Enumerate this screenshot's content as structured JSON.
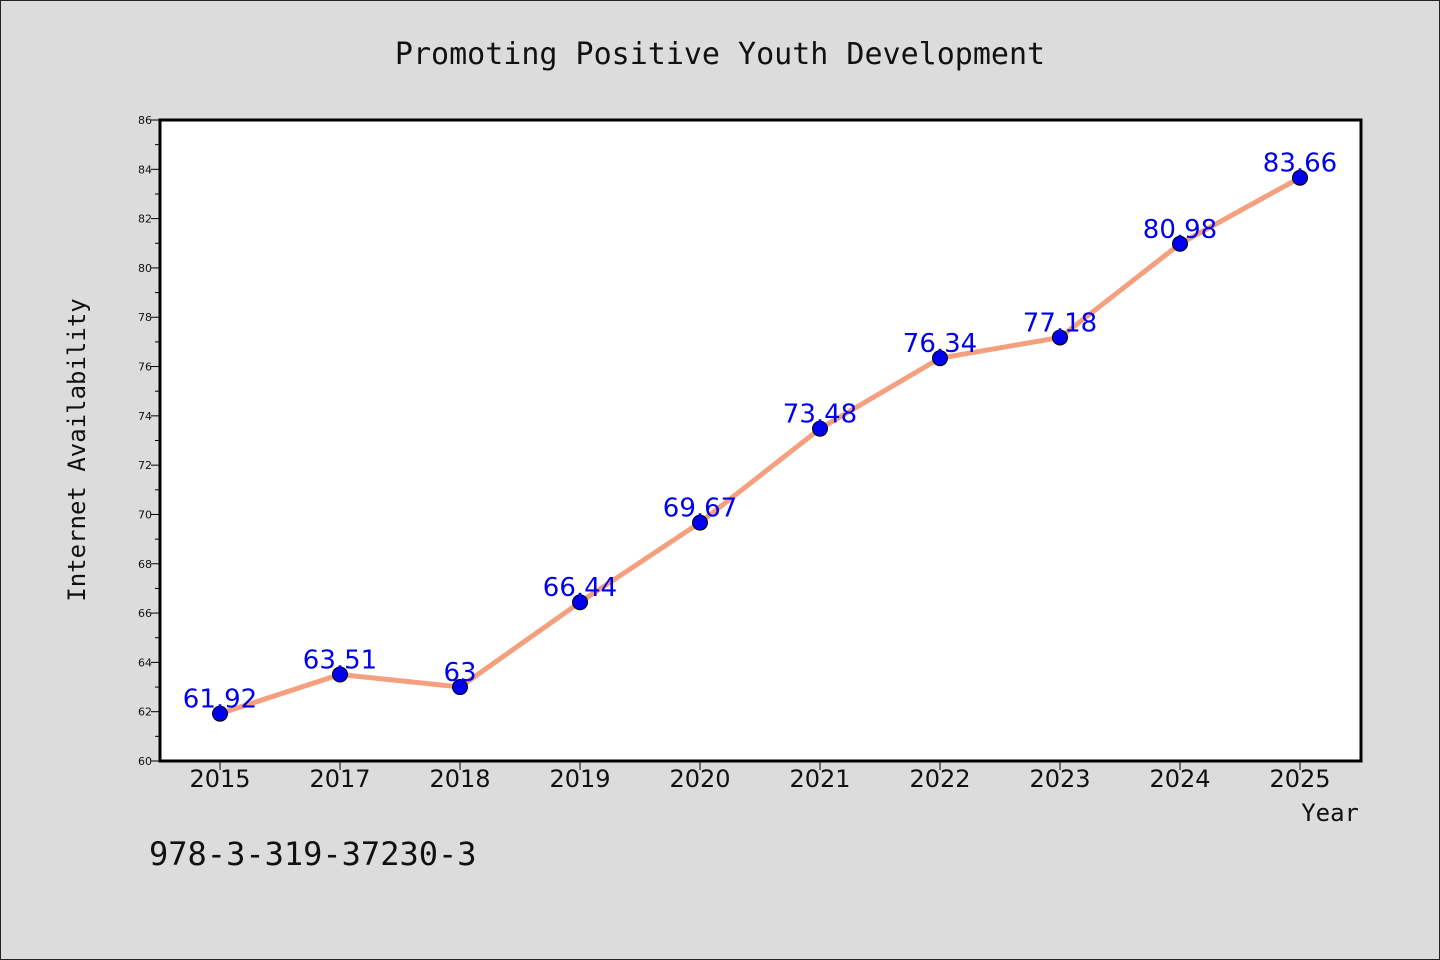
{
  "footer": {
    "isbn": "978-3-319-37230-3"
  },
  "chart_data": {
    "type": "line",
    "title": "Promoting Positive Youth Development",
    "xlabel": "Year",
    "ylabel": "Internet Availability",
    "categories": [
      "2015",
      "2017",
      "2018",
      "2019",
      "2020",
      "2021",
      "2022",
      "2023",
      "2024",
      "2025"
    ],
    "series": [
      {
        "values": [
          61.92,
          63.51,
          63,
          66.44,
          69.67,
          73.48,
          76.34,
          77.18,
          80.98,
          83.66
        ],
        "labels": [
          "61.92",
          "63.51",
          "63",
          "66.44",
          "69.67",
          "73.48",
          "76.34",
          "77.18",
          "80.98",
          "83.66"
        ],
        "line_color": "#f4a07f",
        "marker_color": "#0000ee"
      }
    ],
    "ylim": [
      60,
      86
    ],
    "yticks": [
      "60",
      "62",
      "64",
      "66",
      "68",
      "70",
      "72",
      "74",
      "76",
      "78",
      "80",
      "82",
      "84",
      "86"
    ],
    "grid": false,
    "plot_background": "#ffffff",
    "page_background": "#dcdcdc"
  }
}
